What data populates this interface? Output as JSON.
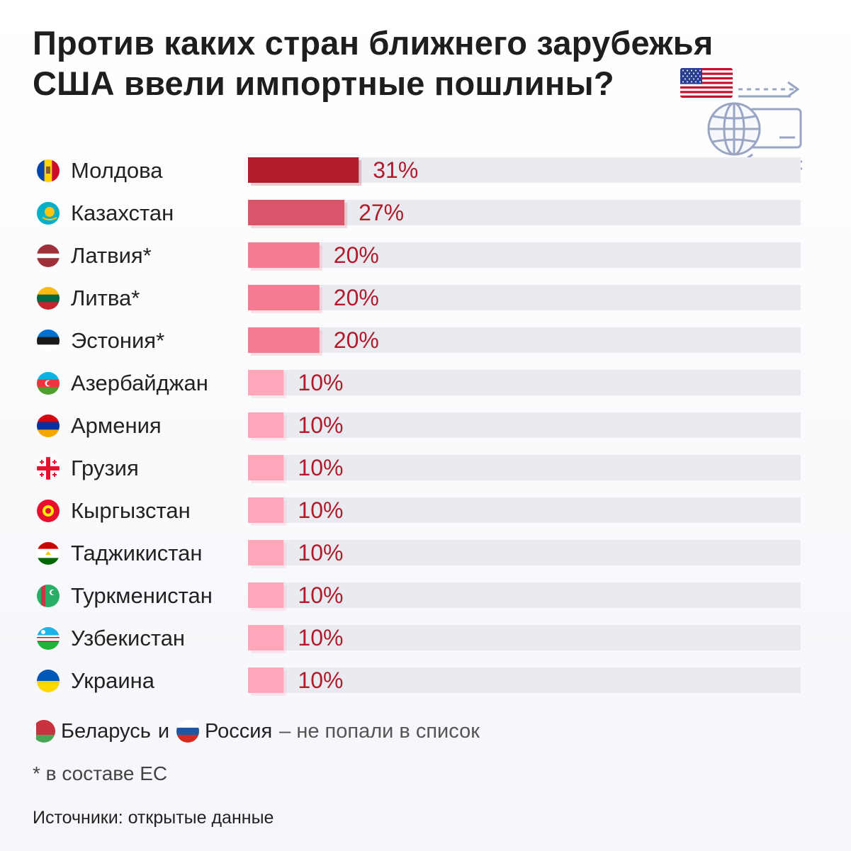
{
  "title": {
    "line1": "Против каких стран ближнего зарубежья",
    "line2": "США ввели импортные пошлины?"
  },
  "icons": {
    "us_flag": "us-flag-icon",
    "trade": "globe-card-trade-icon"
  },
  "colors": {
    "value_text": "#b01c2c",
    "track": "#e9ebf0",
    "tier_31": "#b01c2c",
    "tier_27": "#d9566a",
    "tier_20": "#f47b90",
    "tier_10": "#ffa6bb"
  },
  "chart_data": {
    "type": "bar",
    "orientation": "horizontal",
    "title": "Против каких стран ближнего зарубежья США ввели импортные пошлины?",
    "xlim": [
      0,
      100
    ],
    "categories": [
      "Молдова",
      "Казахстан",
      "Латвия*",
      "Литва*",
      "Эстония*",
      "Азербайджан",
      "Армения",
      "Грузия",
      "Кыргызстан",
      "Таджикистан",
      "Туркменистан",
      "Узбекистан",
      "Украина"
    ],
    "values": [
      31,
      27,
      20,
      20,
      20,
      10,
      10,
      10,
      10,
      10,
      10,
      10,
      10
    ],
    "value_labels": [
      "31%",
      "27%",
      "20%",
      "20%",
      "20%",
      "10%",
      "10%",
      "10%",
      "10%",
      "10%",
      "10%",
      "10%",
      "10%"
    ],
    "flags": [
      "moldova-flag-icon",
      "kazakhstan-flag-icon",
      "latvia-flag-icon",
      "lithuania-flag-icon",
      "estonia-flag-icon",
      "azerbaijan-flag-icon",
      "armenia-flag-icon",
      "georgia-flag-icon",
      "kyrgyzstan-flag-icon",
      "tajikistan-flag-icon",
      "turkmenistan-flag-icon",
      "uzbekistan-flag-icon",
      "ukraine-flag-icon"
    ]
  },
  "footnote": {
    "belarus": "Беларусь",
    "and": "и",
    "russia": "Россия",
    "rest": "– не попали в список",
    "belarus_flag": "belarus-flag-icon",
    "russia_flag": "russia-flag-icon"
  },
  "eu_note": "* в составе ЕС",
  "source": "Источники: открытые данные"
}
